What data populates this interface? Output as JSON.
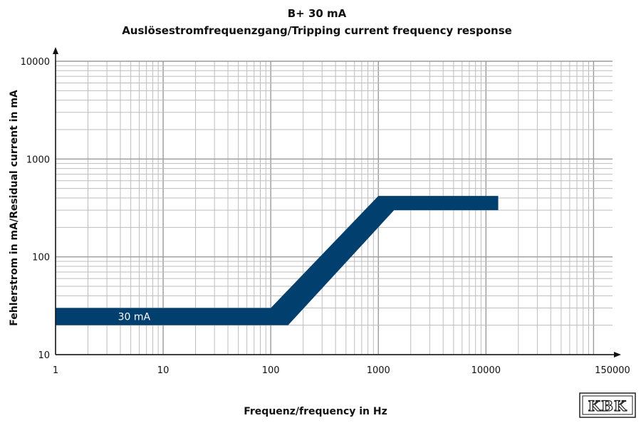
{
  "chart_data": {
    "type": "area",
    "title": "B+ 30 mA",
    "subtitle": "Auslösestromfrequenzgang/Tripping current frequency response",
    "xlabel": "Frequenz/frequency in Hz",
    "ylabel": "Fehlerstrom in mA/Residual current in mA",
    "x_scale": "log",
    "y_scale": "log",
    "xlim": [
      1,
      150000
    ],
    "ylim": [
      10,
      10000
    ],
    "x_ticks": [
      "1",
      "10",
      "100",
      "1000",
      "10000",
      "150000"
    ],
    "y_ticks": [
      "10",
      "100",
      "1000",
      "10000"
    ],
    "grid": true,
    "band_color": "#003f6e",
    "series": [
      {
        "x": [
          1,
          100,
          1000,
          13000
        ],
        "upper": [
          30,
          30,
          420,
          420
        ],
        "lower": [
          20,
          20,
          300,
          300
        ],
        "lower_x": [
          1,
          145,
          1400,
          13000
        ]
      }
    ],
    "annotations": [
      {
        "text": "30 mA",
        "x": 6,
        "y": 24.5
      }
    ]
  },
  "logo": {
    "text": "KBK"
  }
}
